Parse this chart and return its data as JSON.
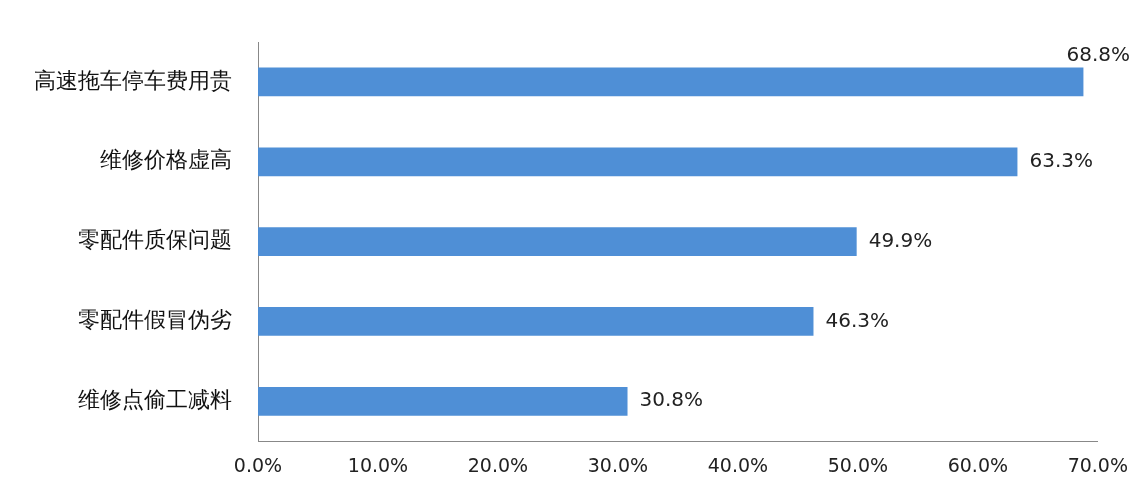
{
  "chart_data": {
    "type": "bar",
    "orientation": "horizontal",
    "categories": [
      "高速拖车停车费用贵",
      "维修价格虚高",
      "零配件质保问题",
      "零配件假冒伪劣",
      "维修点偷工减料"
    ],
    "values": [
      68.8,
      63.3,
      49.9,
      46.3,
      30.8
    ],
    "value_labels": [
      "68.8%",
      "63.3%",
      "49.9%",
      "46.3%",
      "30.8%"
    ],
    "color": "#4f8fd6",
    "xlim": [
      0,
      70
    ],
    "xticks": [
      {
        "value": 0,
        "label": "0.0%"
      },
      {
        "value": 10,
        "label": "10.0%"
      },
      {
        "value": 20,
        "label": "20.0%"
      },
      {
        "value": 30,
        "label": "30.0%"
      },
      {
        "value": 40,
        "label": "40.0%"
      },
      {
        "value": 50,
        "label": "50.0%"
      },
      {
        "value": 60,
        "label": "60.0%"
      },
      {
        "value": 70,
        "label": "70.0%"
      }
    ],
    "grid": false,
    "legend": false
  }
}
